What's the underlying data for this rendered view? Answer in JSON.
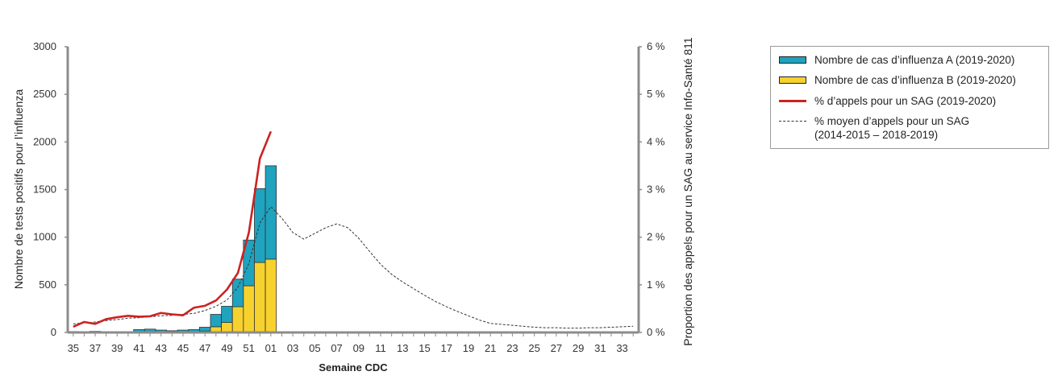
{
  "chart_data": {
    "type": "bar",
    "xlabel": "Semaine CDC",
    "ylabel_left": "Nombre de tests positifs pour l’influenza",
    "ylabel_right": "Proportion des appels pour un SAG au service Info-Santé 811",
    "ylim_left": [
      0,
      3000
    ],
    "ylim_right": [
      0,
      6
    ],
    "yticks_left": [
      "0",
      "500",
      "1000",
      "1500",
      "2000",
      "2500",
      "3000"
    ],
    "yticks_right": [
      "0 %",
      "1 %",
      "2 %",
      "3 %",
      "4 %",
      "5 %",
      "6 %"
    ],
    "weeks": [
      "35",
      "36",
      "37",
      "38",
      "39",
      "40",
      "41",
      "42",
      "43",
      "44",
      "45",
      "46",
      "47",
      "48",
      "49",
      "50",
      "51",
      "52",
      "01",
      "02",
      "03",
      "04",
      "05",
      "06",
      "07",
      "08",
      "09",
      "10",
      "11",
      "12",
      "13",
      "14",
      "15",
      "16",
      "17",
      "18",
      "19",
      "20",
      "21",
      "22",
      "23",
      "24",
      "25",
      "26",
      "27",
      "28",
      "29",
      "30",
      "31",
      "32",
      "33",
      "34"
    ],
    "xtick_labels": [
      "35",
      "37",
      "39",
      "41",
      "43",
      "45",
      "47",
      "49",
      "51",
      "01",
      "03",
      "05",
      "07",
      "09",
      "11",
      "13",
      "15",
      "17",
      "19",
      "21",
      "23",
      "25",
      "27",
      "29",
      "31",
      "33"
    ],
    "series": [
      {
        "name": "Nombre de cas d’influenza A (2019-2020)",
        "type": "stacked-bar",
        "color": "#1fa3be",
        "values": [
          10,
          5,
          12,
          4,
          3,
          8,
          30,
          35,
          25,
          18,
          25,
          28,
          40,
          130,
          170,
          290,
          480,
          775,
          980
        ]
      },
      {
        "name": "Nombre de cas d’influenza B (2019-2020)",
        "type": "stacked-bar",
        "color": "#f7d12e",
        "values": [
          0,
          0,
          0,
          0,
          0,
          0,
          0,
          0,
          0,
          0,
          0,
          2,
          15,
          60,
          105,
          270,
          490,
          735,
          770
        ]
      },
      {
        "name": "% d’appels pour un SAG (2019-2020)",
        "type": "line",
        "color": "#cc2222",
        "axis": "right",
        "x": [
          "35",
          "36",
          "37",
          "38",
          "39",
          "40",
          "41",
          "42",
          "43",
          "44",
          "45",
          "46",
          "47",
          "48",
          "49",
          "50",
          "51",
          "52",
          "01"
        ],
        "values": [
          0.12,
          0.22,
          0.18,
          0.28,
          0.32,
          0.35,
          0.33,
          0.34,
          0.41,
          0.38,
          0.36,
          0.52,
          0.56,
          0.67,
          0.9,
          1.25,
          2.1,
          3.65,
          4.22
        ]
      },
      {
        "name": "% moyen d’appels pour un SAG",
        "name_line2": "(2014-2015 – 2018-2019)",
        "type": "dashed-line",
        "color": "#333333",
        "axis": "right",
        "x": [
          "35",
          "36",
          "37",
          "38",
          "39",
          "40",
          "41",
          "42",
          "43",
          "44",
          "45",
          "46",
          "47",
          "48",
          "49",
          "50",
          "51",
          "52",
          "01",
          "02",
          "03",
          "04",
          "05",
          "06",
          "07",
          "08",
          "09",
          "10",
          "11",
          "12",
          "13",
          "14",
          "15",
          "16",
          "17",
          "18",
          "19",
          "20",
          "21",
          "22",
          "23",
          "24",
          "25",
          "26",
          "27",
          "28",
          "29",
          "30",
          "31",
          "32",
          "33",
          "34"
        ],
        "values": [
          0.18,
          0.2,
          0.22,
          0.25,
          0.27,
          0.3,
          0.31,
          0.33,
          0.35,
          0.36,
          0.38,
          0.4,
          0.46,
          0.55,
          0.68,
          0.95,
          1.45,
          2.3,
          2.64,
          2.4,
          2.1,
          1.96,
          2.08,
          2.2,
          2.28,
          2.2,
          1.98,
          1.7,
          1.43,
          1.22,
          1.06,
          0.92,
          0.78,
          0.65,
          0.54,
          0.44,
          0.35,
          0.26,
          0.19,
          0.17,
          0.15,
          0.13,
          0.11,
          0.1,
          0.1,
          0.09,
          0.09,
          0.1,
          0.1,
          0.11,
          0.12,
          0.13
        ]
      }
    ],
    "legend_position": "top-right"
  }
}
